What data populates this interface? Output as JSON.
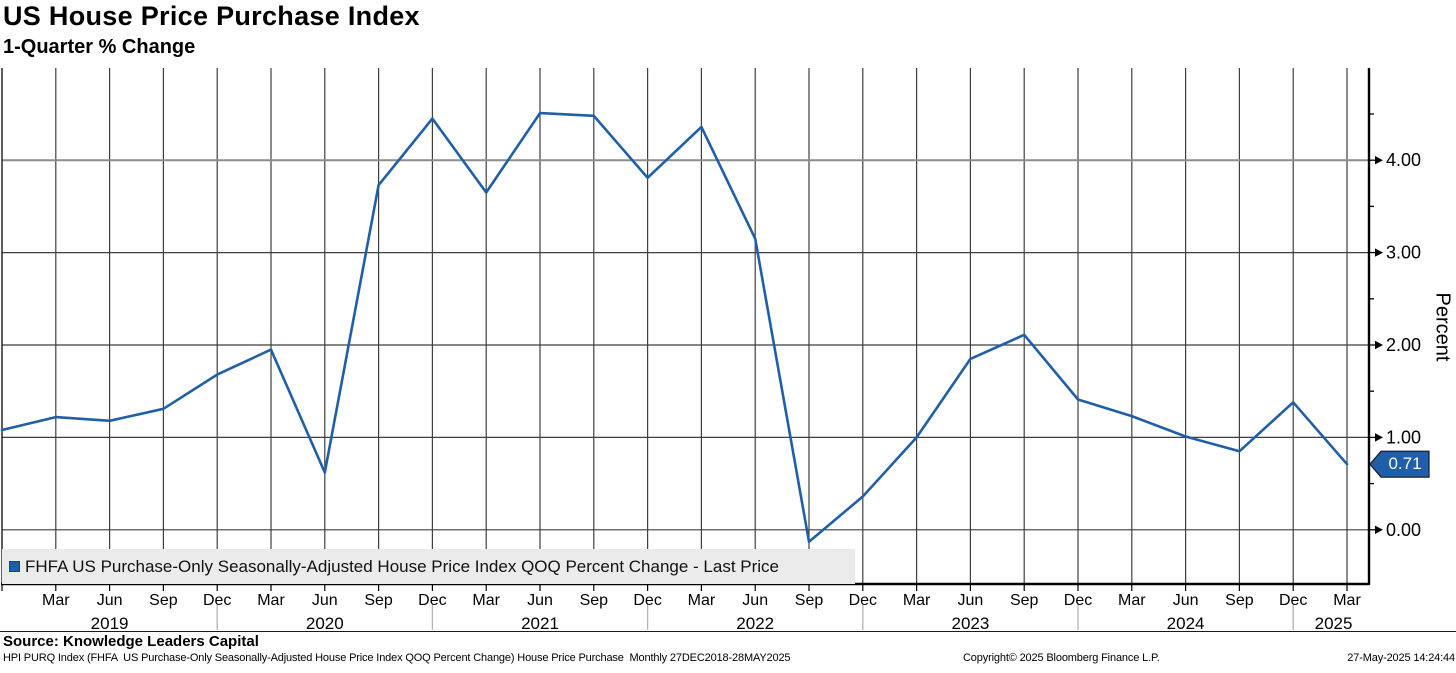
{
  "header": {
    "title": "US House Price Purchase Index",
    "subtitle": "1-Quarter % Change"
  },
  "legend": {
    "marker_icon": "blue-square-series-marker",
    "label": "FHFA US Purchase-Only Seasonally-Adjusted House Price Index QOQ Percent Change - Last Price"
  },
  "y_axis": {
    "title": "Percent",
    "last_price": "0.71"
  },
  "footer": {
    "source": "Source: Knowledge Leaders Capital",
    "description": "HPI PURQ Index (FHFA  US Purchase-Only Seasonally-Adjusted House Price Index QOQ Percent Change) House Price Purchase  Monthly 27DEC2018-28MAY2025",
    "copyright": "Copyright© 2025 Bloomberg Finance L.P.",
    "timestamp": "27-May-2025 14:24:44"
  },
  "chart_data": {
    "type": "line",
    "title": "US House Price Purchase Index",
    "subtitle": "1-Quarter % Change",
    "xlabel": "",
    "ylabel": "Percent",
    "grid": "both",
    "legend_position": "bottom-left",
    "line_color": "#1f5fa8",
    "ylim": [
      -0.6,
      5.0
    ],
    "yticks_major": [
      0,
      1,
      2,
      3,
      4
    ],
    "ytick_labels": [
      "0.00",
      "1.00",
      "2.00",
      "3.00",
      "4.00"
    ],
    "yticks_minor": [
      0.5,
      1.5,
      2.5,
      3.5,
      4.5
    ],
    "x": [
      "Dec 2018",
      "Mar 2019",
      "Jun 2019",
      "Sep 2019",
      "Dec 2019",
      "Mar 2020",
      "Jun 2020",
      "Sep 2020",
      "Dec 2020",
      "Mar 2021",
      "Jun 2021",
      "Sep 2021",
      "Dec 2021",
      "Mar 2022",
      "Jun 2022",
      "Sep 2022",
      "Dec 2022",
      "Mar 2023",
      "Jun 2023",
      "Sep 2023",
      "Dec 2023",
      "Mar 2024",
      "Jun 2024",
      "Sep 2024",
      "Dec 2024",
      "Mar 2025"
    ],
    "series": [
      {
        "name": "FHFA US Purchase-Only Seasonally-Adjusted House Price Index QOQ Percent Change - Last Price",
        "values": [
          1.08,
          1.22,
          1.18,
          1.31,
          1.68,
          1.95,
          0.62,
          3.73,
          4.45,
          3.65,
          4.51,
          4.48,
          3.81,
          4.36,
          3.15,
          -0.13,
          0.36,
          1.0,
          1.85,
          2.11,
          1.41,
          1.23,
          1.01,
          0.85,
          1.38,
          0.71
        ]
      }
    ],
    "last_price": 0.71,
    "x_tick_labels": [
      "Mar",
      "Jun",
      "Sep",
      "Dec",
      "Mar",
      "Jun",
      "Sep",
      "Dec",
      "Mar",
      "Jun",
      "Sep",
      "Dec",
      "Mar",
      "Jun",
      "Sep",
      "Dec",
      "Mar",
      "Jun",
      "Sep",
      "Dec",
      "Mar",
      "Jun",
      "Sep",
      "Dec",
      "Mar"
    ],
    "years": [
      {
        "label": "2019",
        "i": 2
      },
      {
        "label": "2020",
        "i": 6
      },
      {
        "label": "2021",
        "i": 10
      },
      {
        "label": "2022",
        "i": 14
      },
      {
        "label": "2023",
        "i": 18
      },
      {
        "label": "2024",
        "i": 22
      },
      {
        "label": "2025",
        "i": 24.75
      }
    ],
    "year_separators_i": [
      4,
      8,
      12,
      16,
      20,
      24
    ]
  }
}
